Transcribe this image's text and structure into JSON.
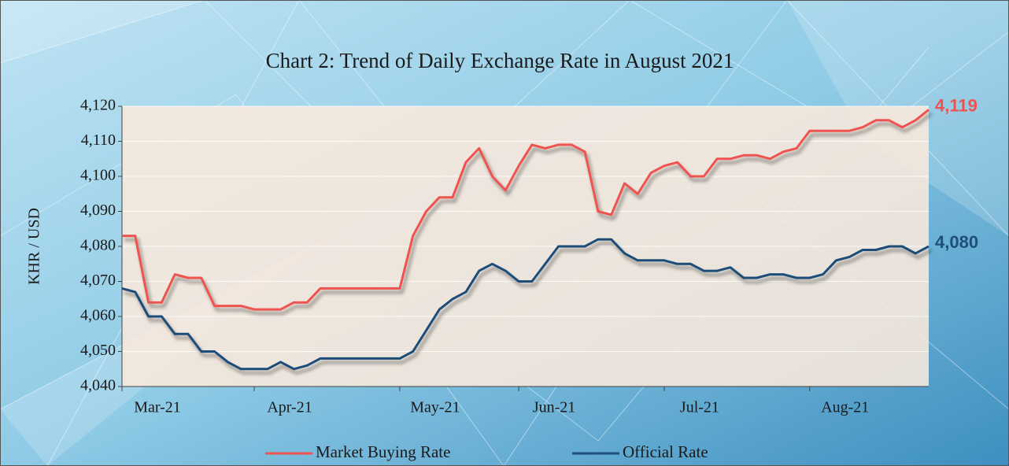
{
  "chart_data": {
    "type": "line",
    "title": "Chart 2: Trend of Daily Exchange Rate in August 2021",
    "y_label": "KHR / USD",
    "categories": [
      "Mar-21",
      null,
      null,
      null,
      null,
      null,
      null,
      null,
      null,
      null,
      "Apr-21",
      null,
      null,
      null,
      null,
      null,
      null,
      null,
      null,
      null,
      null,
      "May-21",
      null,
      null,
      null,
      null,
      null,
      null,
      null,
      null,
      "Jun-21",
      null,
      null,
      null,
      null,
      null,
      null,
      null,
      null,
      null,
      null,
      "Jul-21",
      null,
      null,
      null,
      null,
      null,
      null,
      null,
      null,
      null,
      null,
      "Aug-21",
      null,
      null,
      null,
      null,
      null,
      null,
      null,
      null,
      null
    ],
    "ylim": [
      4040,
      4120
    ],
    "yticks": [
      {
        "value": 4040,
        "label": "4,040"
      },
      {
        "value": 4050,
        "label": "4,050"
      },
      {
        "value": 4060,
        "label": "4,060"
      },
      {
        "value": 4070,
        "label": "4,070"
      },
      {
        "value": 4080,
        "label": "4,080"
      },
      {
        "value": 4090,
        "label": "4,090"
      },
      {
        "value": 4100,
        "label": "4,100"
      },
      {
        "value": 4110,
        "label": "4,110"
      },
      {
        "value": 4120,
        "label": "4,120"
      }
    ],
    "grid": true,
    "series": [
      {
        "name": "Market Buying Rate",
        "color": "#ef5350",
        "values": [
          4083,
          4083,
          4064,
          4064,
          4072,
          4071,
          4071,
          4063,
          4063,
          4063,
          4062,
          4062,
          4062,
          4064,
          4064,
          4068,
          4068,
          4068,
          4068,
          4068,
          4068,
          4068,
          4083,
          4090,
          4094,
          4094,
          4104,
          4108,
          4100,
          4096,
          4103,
          4109,
          4108,
          4109,
          4109,
          4107,
          4090,
          4089,
          4098,
          4095,
          4101,
          4103,
          4104,
          4100,
          4100,
          4105,
          4105,
          4106,
          4106,
          4105,
          4107,
          4108,
          4113,
          4113,
          4113,
          4113,
          4114,
          4116,
          4116,
          4114,
          4116,
          4119
        ],
        "value_labels": [
          null,
          null,
          null,
          null,
          null,
          null,
          null,
          null,
          null,
          null,
          null,
          null,
          null,
          null,
          null,
          null,
          null,
          null,
          null,
          null,
          null,
          null,
          null,
          null,
          null,
          null,
          null,
          null,
          null,
          null,
          null,
          null,
          null,
          null,
          null,
          null,
          null,
          null,
          null,
          null,
          null,
          null,
          null,
          null,
          null,
          null,
          null,
          null,
          null,
          null,
          null,
          null,
          null,
          null,
          null,
          null,
          null,
          null,
          null,
          null,
          null,
          "4,119"
        ]
      },
      {
        "name": "Official Rate",
        "color": "#1f4e79",
        "values": [
          4068,
          4067,
          4060,
          4060,
          4055,
          4055,
          4050,
          4050,
          4047,
          4045,
          4045,
          4045,
          4047,
          4045,
          4046,
          4048,
          4048,
          4048,
          4048,
          4048,
          4048,
          4048,
          4050,
          4056,
          4062,
          4065,
          4067,
          4073,
          4075,
          4073,
          4070,
          4070,
          4075,
          4080,
          4080,
          4080,
          4082,
          4082,
          4078,
          4076,
          4076,
          4076,
          4075,
          4075,
          4073,
          4073,
          4074,
          4071,
          4071,
          4072,
          4072,
          4071,
          4071,
          4072,
          4076,
          4077,
          4079,
          4079,
          4080,
          4080,
          4078,
          4080
        ],
        "value_labels": [
          null,
          null,
          null,
          null,
          null,
          null,
          null,
          null,
          null,
          null,
          null,
          null,
          null,
          null,
          null,
          null,
          null,
          null,
          null,
          null,
          null,
          null,
          null,
          null,
          null,
          null,
          null,
          null,
          null,
          null,
          null,
          null,
          null,
          null,
          null,
          null,
          null,
          null,
          null,
          null,
          null,
          null,
          null,
          null,
          null,
          null,
          null,
          null,
          null,
          null,
          null,
          null,
          null,
          null,
          null,
          null,
          null,
          null,
          null,
          null,
          null,
          "4,080"
        ]
      }
    ],
    "legend": "bottom"
  }
}
